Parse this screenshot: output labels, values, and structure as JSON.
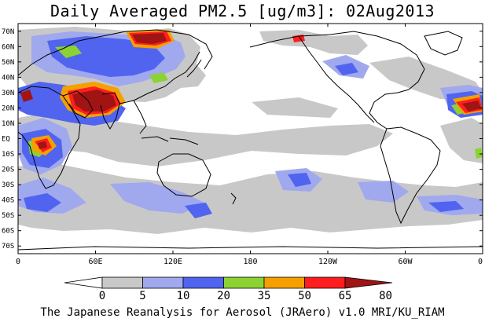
{
  "title": "Daily Averaged PM2.5 [ug/m3]: 02Aug2013",
  "credit": "The Japanese Reanalysis for Aerosol (JRAero) v1.0 MRI/KU_RIAM",
  "map": {
    "projection": "equirectangular",
    "lon_range": [
      0,
      360
    ],
    "lat_range": [
      -75,
      75
    ],
    "lat_ticks": [
      {
        "lat": 70,
        "label": "70N"
      },
      {
        "lat": 60,
        "label": "60N"
      },
      {
        "lat": 50,
        "label": "50N"
      },
      {
        "lat": 40,
        "label": "40N"
      },
      {
        "lat": 30,
        "label": "30N"
      },
      {
        "lat": 20,
        "label": "20N"
      },
      {
        "lat": 10,
        "label": "10N"
      },
      {
        "lat": 0,
        "label": "EQ"
      },
      {
        "lat": -10,
        "label": "10S"
      },
      {
        "lat": -20,
        "label": "20S"
      },
      {
        "lat": -30,
        "label": "30S"
      },
      {
        "lat": -40,
        "label": "40S"
      },
      {
        "lat": -50,
        "label": "50S"
      },
      {
        "lat": -60,
        "label": "60S"
      },
      {
        "lat": -70,
        "label": "70S"
      }
    ],
    "lon_ticks": [
      {
        "lon": 0,
        "label": "0"
      },
      {
        "lon": 60,
        "label": "60E"
      },
      {
        "lon": 120,
        "label": "120E"
      },
      {
        "lon": 180,
        "label": "180"
      },
      {
        "lon": 240,
        "label": "120W"
      },
      {
        "lon": 300,
        "label": "60W"
      },
      {
        "lon": 360,
        "label": "0"
      }
    ]
  },
  "colorbar": {
    "levels": [
      "0",
      "5",
      "10",
      "20",
      "35",
      "50",
      "65",
      "80"
    ],
    "colors": [
      "#ffffff",
      "#c8c8c8",
      "#a0a8ee",
      "#5064f0",
      "#8cd232",
      "#f5a000",
      "#ff1e1e",
      "#a01414"
    ]
  }
}
